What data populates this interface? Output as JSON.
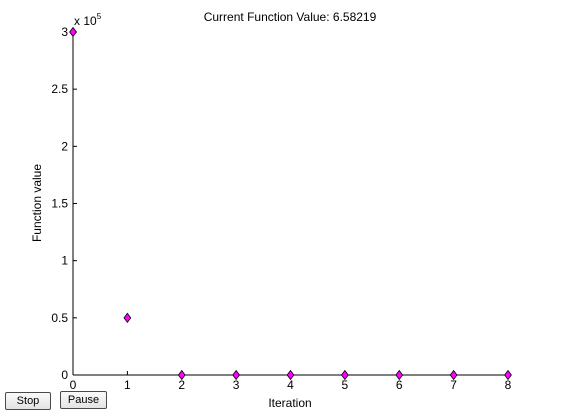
{
  "buttons": {
    "stop_label": "Stop",
    "pause_label": "Pause"
  },
  "chart_data": {
    "type": "scatter",
    "title": "Current Function Value: 6.58219",
    "xlabel": "Iteration",
    "ylabel": "Function value",
    "exponent_label_base": "x 10",
    "exponent_label_power": "5",
    "xlim": [
      0,
      8
    ],
    "ylim": [
      0,
      300000
    ],
    "x_ticks": [
      0,
      1,
      2,
      3,
      4,
      5,
      6,
      7,
      8
    ],
    "x_tick_labels": [
      "0",
      "1",
      "2",
      "3",
      "4",
      "5",
      "6",
      "7",
      "8"
    ],
    "y_ticks": [
      0,
      50000,
      100000,
      150000,
      200000,
      250000,
      300000
    ],
    "y_tick_labels": [
      "0",
      "0.5",
      "1",
      "1.5",
      "2",
      "2.5",
      "3"
    ],
    "marker": "diamond",
    "marker_color": "#ff00ff",
    "x": [
      0,
      1,
      2,
      3,
      4,
      5,
      6,
      7,
      8
    ],
    "y": [
      300000,
      50000,
      7,
      7,
      7,
      7,
      7,
      7,
      6.58219
    ],
    "grid": false
  }
}
